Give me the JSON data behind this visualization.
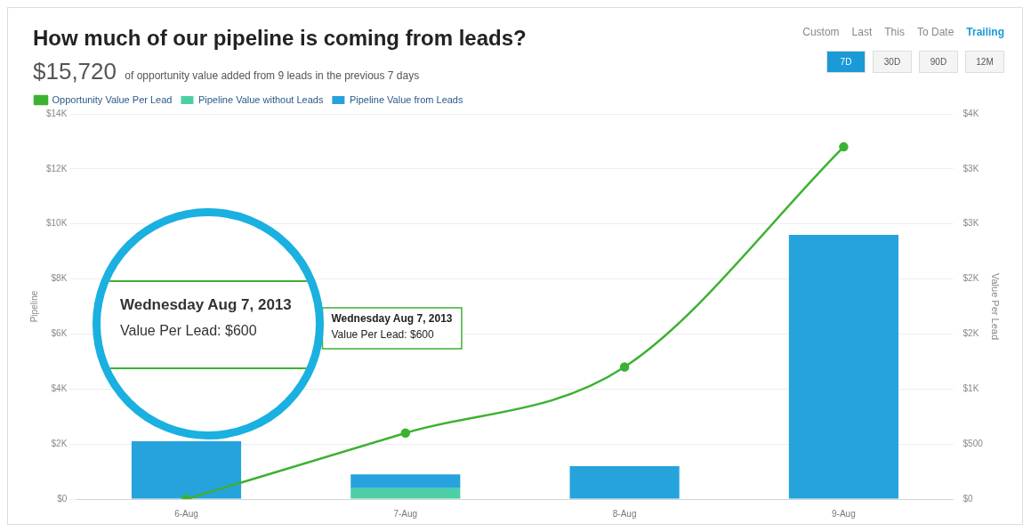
{
  "chart_data": {
    "type": "bar",
    "title": "How much of our pipeline is coming from leads?",
    "subtitle": "$15,720 of opportunity value added from 9 leads in the previous 7 days",
    "ylabel": "Pipeline",
    "y2label": "Value Per Lead",
    "categories": [
      "6-Aug",
      "7-Aug",
      "8-Aug",
      "9-Aug"
    ],
    "stacked": true,
    "series": [
      {
        "name": "Pipeline Value without Leads",
        "color": "#4ccfa5",
        "values": [
          null,
          400,
          null,
          null
        ]
      },
      {
        "name": "Pipeline Value from Leads",
        "color": "#26a3dc",
        "values": [
          2100,
          500,
          1200,
          9600
        ]
      },
      {
        "name": "Opportunity Value Per Lead",
        "type": "line",
        "axis": "y2",
        "color": "#3cb132",
        "marker": "circle",
        "values": [
          0,
          600,
          1200,
          3200
        ]
      }
    ],
    "ylim": [
      0,
      14000
    ],
    "yticks": [
      {
        "value": 0,
        "label": "$0"
      },
      {
        "value": 2000,
        "label": "$2K"
      },
      {
        "value": 4000,
        "label": "$4K"
      },
      {
        "value": 6000,
        "label": "$6K"
      },
      {
        "value": 8000,
        "label": "$8K"
      },
      {
        "value": 10000,
        "label": "$10K"
      },
      {
        "value": 12000,
        "label": "$12K"
      },
      {
        "value": 14000,
        "label": "$14K"
      }
    ],
    "y2lim": [
      0,
      3500
    ],
    "y2ticks": [
      {
        "value": 0,
        "label": "$0"
      },
      {
        "value": 500,
        "label": "$500"
      },
      {
        "value": 1000,
        "label": "$1K"
      },
      {
        "value": 1500,
        "label": "$2K"
      },
      {
        "value": 2000,
        "label": "$2K"
      },
      {
        "value": 2500,
        "label": "$3K"
      },
      {
        "value": 3000,
        "label": "$3K"
      },
      {
        "value": 3500,
        "label": "$4K"
      }
    ],
    "grid": "y",
    "legend": "top left",
    "annotations": [
      "Wednesday Aug 7, 2013",
      "Value Per Lead: $600",
      "Custom",
      "Last",
      "This",
      "To Date",
      "Trailing",
      "7D",
      "30D",
      "90D",
      "12M"
    ]
  }
}
